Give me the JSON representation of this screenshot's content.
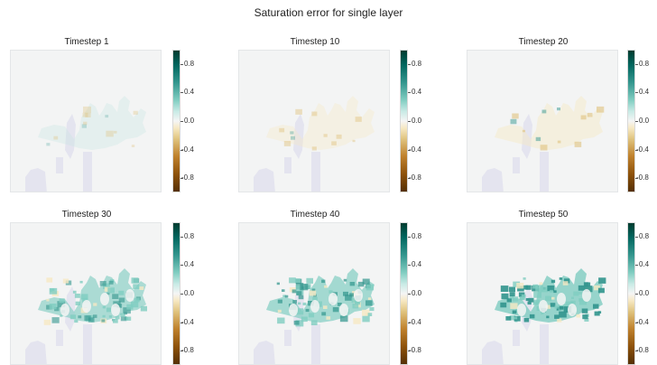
{
  "figure": {
    "title": "Saturation error for single layer"
  },
  "chart_data": {
    "type": "heatmap",
    "title": "Saturation error for single layer",
    "colormap": "BrBG",
    "vmin": -1,
    "vmax": 1,
    "colorbar_ticks": [
      "0.8",
      "0.4",
      "0.0",
      "-0.4",
      "-0.8"
    ],
    "colorbar_tick_values": [
      0.8,
      0.4,
      0.0,
      -0.4,
      -0.8
    ],
    "panels": [
      {
        "title": "Timestep 1",
        "timestep": 1,
        "approx_max_abs_error": 0.05
      },
      {
        "title": "Timestep 10",
        "timestep": 10,
        "approx_max_abs_error": 0.15
      },
      {
        "title": "Timestep 20",
        "timestep": 20,
        "approx_max_abs_error": 0.3
      },
      {
        "title": "Timestep 30",
        "timestep": 30,
        "approx_max_abs_error": 0.45
      },
      {
        "title": "Timestep 40",
        "timestep": 40,
        "approx_max_abs_error": 0.6
      },
      {
        "title": "Timestep 50",
        "timestep": 50,
        "approx_max_abs_error": 0.9
      }
    ]
  }
}
